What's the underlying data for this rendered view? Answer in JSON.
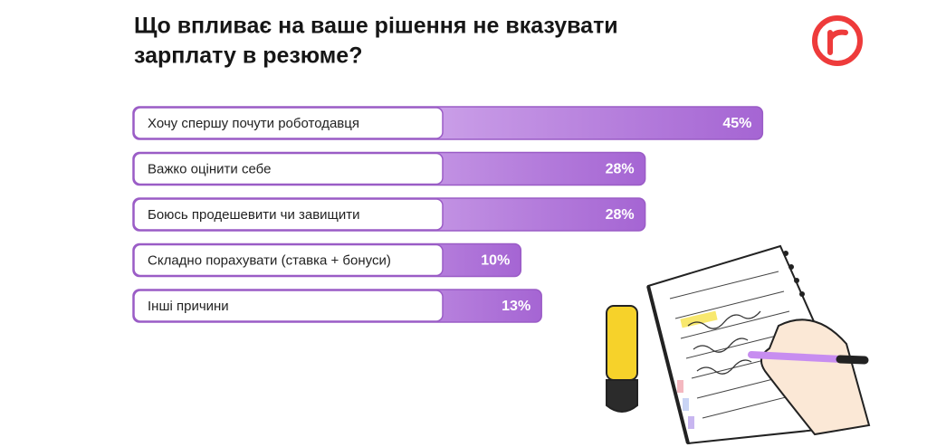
{
  "chart_data": {
    "type": "bar",
    "orientation": "horizontal",
    "title": [
      "Що впливає на ваше рішення не вказувати",
      "зарплату в резюме?"
    ],
    "categories": [
      "Хочу спершу почути роботодавця",
      "Важко оцінити себе",
      "Боюсь продешевити чи завищити",
      "Складно порахувати (ставка + бонуси)",
      "Інші причини"
    ],
    "values": [
      45,
      28,
      28,
      10,
      13
    ],
    "value_labels": [
      "45%",
      "28%",
      "28%",
      "10%",
      "13%"
    ],
    "colors": [
      "#ecd3fb",
      "#a565d3"
    ],
    "border_color": "#9a5cc6"
  }
}
